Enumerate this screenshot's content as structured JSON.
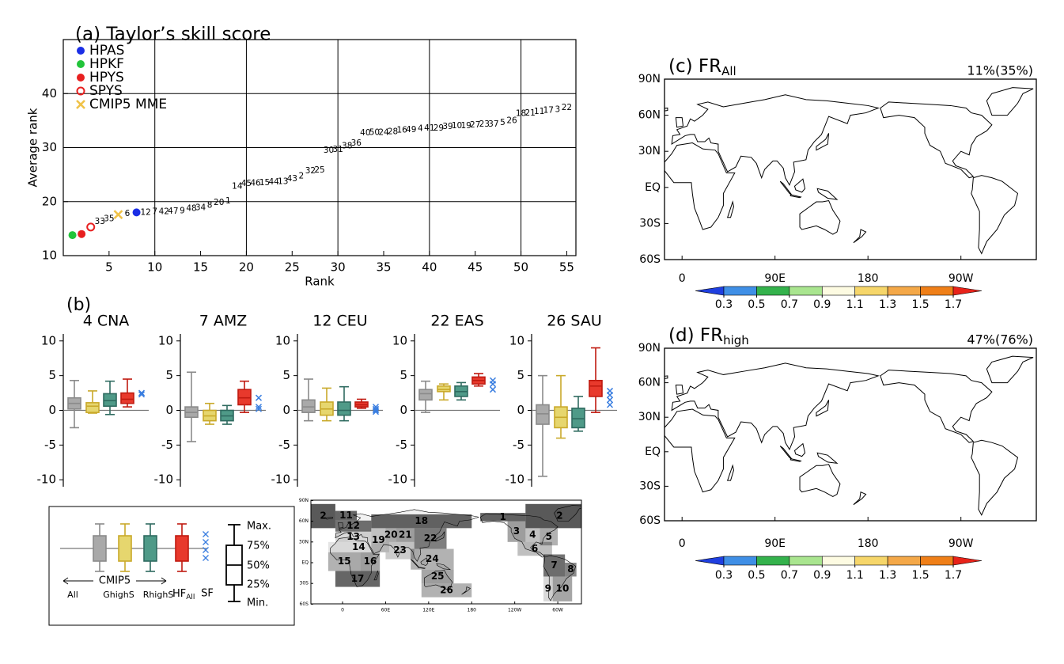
{
  "chart_data": [
    {
      "type": "scatter",
      "title": "(a) Taylor’s skill score",
      "x_label": "Rank",
      "y_label": "Average rank",
      "xlim": [
        0,
        56
      ],
      "ylim": [
        10,
        50
      ],
      "xticks": [
        5,
        10,
        15,
        20,
        25,
        30,
        35,
        40,
        45,
        50,
        55
      ],
      "yticks": [
        10,
        20,
        30,
        40
      ],
      "xgrid": [
        10,
        20,
        30,
        40,
        50
      ],
      "ygrid": [
        20,
        30,
        40
      ],
      "legend": "upper left",
      "series": [
        {
          "name": "HPAS",
          "color": "#1a2ee6",
          "marker": "dot",
          "x": [
            8
          ],
          "values": [
            18.0
          ]
        },
        {
          "name": "HPKF",
          "color": "#22c43a",
          "marker": "dot",
          "x": [
            1
          ],
          "values": [
            13.8
          ]
        },
        {
          "name": "HPYS",
          "color": "#e82020",
          "marker": "dot",
          "x": [
            2
          ],
          "values": [
            14.0
          ]
        },
        {
          "name": "SPYS",
          "color": "#e82020",
          "marker": "open",
          "x": [
            3
          ],
          "values": [
            15.3
          ]
        },
        {
          "name": "CMIP5 MME",
          "color": "#f0c248",
          "marker": "cross",
          "x": [
            6
          ],
          "values": [
            17.6
          ]
        }
      ],
      "labeled_points": {
        "labels": [
          "33",
          "35",
          "6",
          "12",
          "7",
          "42",
          "47",
          "9",
          "48",
          "34",
          "8",
          "20",
          "1",
          "14",
          "45",
          "46",
          "15",
          "44",
          "13",
          "43",
          "2",
          "32",
          "25",
          "30",
          "31",
          "38",
          "36",
          "40",
          "50",
          "24",
          "28",
          "16",
          "49",
          "4",
          "41",
          "29",
          "39",
          "10",
          "19",
          "27",
          "23",
          "37",
          "5",
          "26",
          "18",
          "21",
          "11",
          "17",
          "3",
          "22"
        ],
        "x": [
          4,
          5,
          7,
          9,
          10,
          11,
          12,
          13,
          14,
          15,
          16,
          17,
          18,
          19,
          20,
          21,
          22,
          23,
          24,
          25,
          26,
          27,
          28,
          29,
          30,
          31,
          32,
          33,
          34,
          35,
          36,
          37,
          38,
          39,
          40,
          41,
          42,
          43,
          44,
          45,
          46,
          47,
          48,
          49,
          50,
          51,
          52,
          53,
          54,
          55
        ],
        "values": [
          16.3,
          16.8,
          17.8,
          18.0,
          18.1,
          18.1,
          18.2,
          18.3,
          18.7,
          18.9,
          19.3,
          19.8,
          20.1,
          22.8,
          23.3,
          23.4,
          23.5,
          23.6,
          23.7,
          24.2,
          24.7,
          25.7,
          25.8,
          29.5,
          29.6,
          30.3,
          30.8,
          32.7,
          32.8,
          32.8,
          32.9,
          33.2,
          33.3,
          33.5,
          33.6,
          33.6,
          33.9,
          34.0,
          34.0,
          34.2,
          34.3,
          34.3,
          34.6,
          35.0,
          36.3,
          36.4,
          36.7,
          36.9,
          37.0,
          37.4
        ]
      }
    },
    {
      "type": "box",
      "panel_label": "(b)",
      "ylim": [
        -11,
        11
      ],
      "yticks": [
        -10,
        -5,
        0,
        5,
        10
      ],
      "colors": [
        "#a9a9a9",
        "#e6d66e",
        "#4f9a88",
        "#e8392c"
      ],
      "edge_colors": [
        "#8a8a8a",
        "#c9a92a",
        "#2f6b60",
        "#c01a10"
      ],
      "sf_color": "#3a7ee0",
      "panels": [
        {
          "title": "4 CNA",
          "boxes": [
            {
              "min": -2.5,
              "q1": 0.2,
              "median": 1.0,
              "q3": 1.8,
              "max": 4.3
            },
            {
              "min": -0.4,
              "q1": -0.3,
              "median": 0.6,
              "q3": 1.1,
              "max": 2.8
            },
            {
              "min": -0.6,
              "q1": 0.6,
              "median": 1.4,
              "q3": 2.4,
              "max": 4.2
            },
            {
              "min": 0.5,
              "q1": 1.0,
              "median": 1.6,
              "q3": 2.5,
              "max": 4.5
            }
          ],
          "sf": [
            2.5,
            2.3
          ]
        },
        {
          "title": "7 AMZ",
          "boxes": [
            {
              "min": -4.5,
              "q1": -1.0,
              "median": -0.3,
              "q3": 0.5,
              "max": 5.5
            },
            {
              "min": -2.0,
              "q1": -1.5,
              "median": -0.8,
              "q3": 0.0,
              "max": 1.0
            },
            {
              "min": -2.0,
              "q1": -1.5,
              "median": -0.8,
              "q3": 0.0,
              "max": 0.7
            },
            {
              "min": -0.3,
              "q1": 0.8,
              "median": 1.8,
              "q3": 3.0,
              "max": 4.2
            }
          ],
          "sf": [
            1.8,
            0.5,
            0.2
          ]
        },
        {
          "title": "12 CEU",
          "boxes": [
            {
              "min": -1.5,
              "q1": -0.3,
              "median": 0.5,
              "q3": 1.5,
              "max": 4.5
            },
            {
              "min": -1.5,
              "q1": -0.7,
              "median": 0.2,
              "q3": 1.2,
              "max": 3.2
            },
            {
              "min": -1.5,
              "q1": -0.7,
              "median": 0.0,
              "q3": 1.2,
              "max": 3.4
            },
            {
              "min": 0.3,
              "q1": 0.5,
              "median": 0.8,
              "q3": 1.2,
              "max": 1.6
            }
          ],
          "sf": [
            0.5,
            0.2,
            0.0,
            -0.2
          ]
        },
        {
          "title": "22 EAS",
          "boxes": [
            {
              "min": -0.3,
              "q1": 1.5,
              "median": 2.4,
              "q3": 3.0,
              "max": 4.2
            },
            {
              "min": 1.5,
              "q1": 2.7,
              "median": 3.0,
              "q3": 3.5,
              "max": 3.8
            },
            {
              "min": 1.5,
              "q1": 2.0,
              "median": 2.7,
              "q3": 3.5,
              "max": 4.0
            },
            {
              "min": 3.5,
              "q1": 3.8,
              "median": 4.3,
              "q3": 4.8,
              "max": 5.3
            }
          ],
          "sf": [
            4.3,
            3.8,
            3.0
          ]
        },
        {
          "title": "26 SAU",
          "boxes": [
            {
              "min": -9.5,
              "q1": -2.0,
              "median": -0.5,
              "q3": 0.8,
              "max": 5.0
            },
            {
              "min": -4.0,
              "q1": -2.5,
              "median": -1.0,
              "q3": 0.5,
              "max": 5.0
            },
            {
              "min": -3.0,
              "q1": -2.5,
              "median": -1.2,
              "q3": 0.3,
              "max": 2.0
            },
            {
              "min": -0.3,
              "q1": 2.0,
              "median": 3.5,
              "q3": 4.3,
              "max": 9.0
            }
          ],
          "sf": [
            2.8,
            2.2,
            1.5,
            0.8
          ]
        }
      ],
      "legend": {
        "stats": [
          "Max.",
          "75%",
          "50%",
          "25%",
          "Min."
        ],
        "group": "CMIP5",
        "names": [
          "All",
          "GhighS",
          "RhighS"
        ],
        "hf": "HF",
        "hf_sub": "All",
        "sf": "SF"
      }
    },
    {
      "type": "region_map",
      "labels": [
        "1",
        "2",
        "3",
        "4",
        "5",
        "6",
        "7",
        "8",
        "9",
        "10",
        "11",
        "12",
        "13",
        "14",
        "15",
        "16",
        "17",
        "18",
        "19",
        "20",
        "21",
        "22",
        "23",
        "24",
        "25",
        "26"
      ],
      "lat_ticks": [
        {
          "value": 90,
          "label": "90N"
        },
        {
          "value": 60,
          "label": "60N"
        },
        {
          "value": 30,
          "label": "30N"
        },
        {
          "value": 0,
          "label": "EQ"
        },
        {
          "value": -30,
          "label": "30S"
        },
        {
          "value": -60,
          "label": "60S"
        }
      ],
      "lon_ticks": [
        0,
        {
          "value": 60,
          "label": "60E"
        },
        {
          "value": 120,
          "label": "120E"
        },
        180,
        {
          "value": 240,
          "label": "120W"
        },
        {
          "value": 300,
          "label": "60W"
        }
      ]
    },
    {
      "type": "map",
      "title": "(c) FR",
      "title_sub": "All",
      "stat": "11%(35%)",
      "lat_ticks": [
        {
          "value": 90,
          "label": "90N"
        },
        {
          "value": 60,
          "label": "60N"
        },
        {
          "value": 30,
          "label": "30N"
        },
        {
          "value": 0,
          "label": "EQ"
        },
        {
          "value": -30,
          "label": "30S"
        },
        {
          "value": -60,
          "label": "60S"
        }
      ],
      "lon_ticks": [
        0,
        {
          "value": 90,
          "label": "90E"
        },
        180,
        {
          "value": 270,
          "label": "90W"
        }
      ],
      "colorbar": {
        "colors": [
          "#1f3fe0",
          "#3f8fe6",
          "#34b24c",
          "#a9e58f",
          "#fdfbe2",
          "#f6d66a",
          "#f4a848",
          "#ef7f18",
          "#e8231a"
        ],
        "ticks": [
          0.3,
          0.5,
          0.7,
          0.9,
          1.1,
          1.3,
          1.5,
          1.7
        ]
      }
    },
    {
      "type": "map",
      "title": "(d) FR",
      "title_sub": "high",
      "stat": "47%(76%)",
      "lat_ticks": [
        {
          "value": 90,
          "label": "90N"
        },
        {
          "value": 60,
          "label": "60N"
        },
        {
          "value": 30,
          "label": "30N"
        },
        {
          "value": 0,
          "label": "EQ"
        },
        {
          "value": -30,
          "label": "30S"
        },
        {
          "value": -60,
          "label": "60S"
        }
      ],
      "lon_ticks": [
        0,
        {
          "value": 90,
          "label": "90E"
        },
        180,
        {
          "value": 270,
          "label": "90W"
        }
      ],
      "colorbar": {
        "colors": [
          "#1f3fe0",
          "#3f8fe6",
          "#34b24c",
          "#a9e58f",
          "#fdfbe2",
          "#f6d66a",
          "#f4a848",
          "#ef7f18",
          "#e8231a"
        ],
        "ticks": [
          0.3,
          0.5,
          0.7,
          0.9,
          1.1,
          1.3,
          1.5,
          1.7
        ]
      }
    }
  ]
}
